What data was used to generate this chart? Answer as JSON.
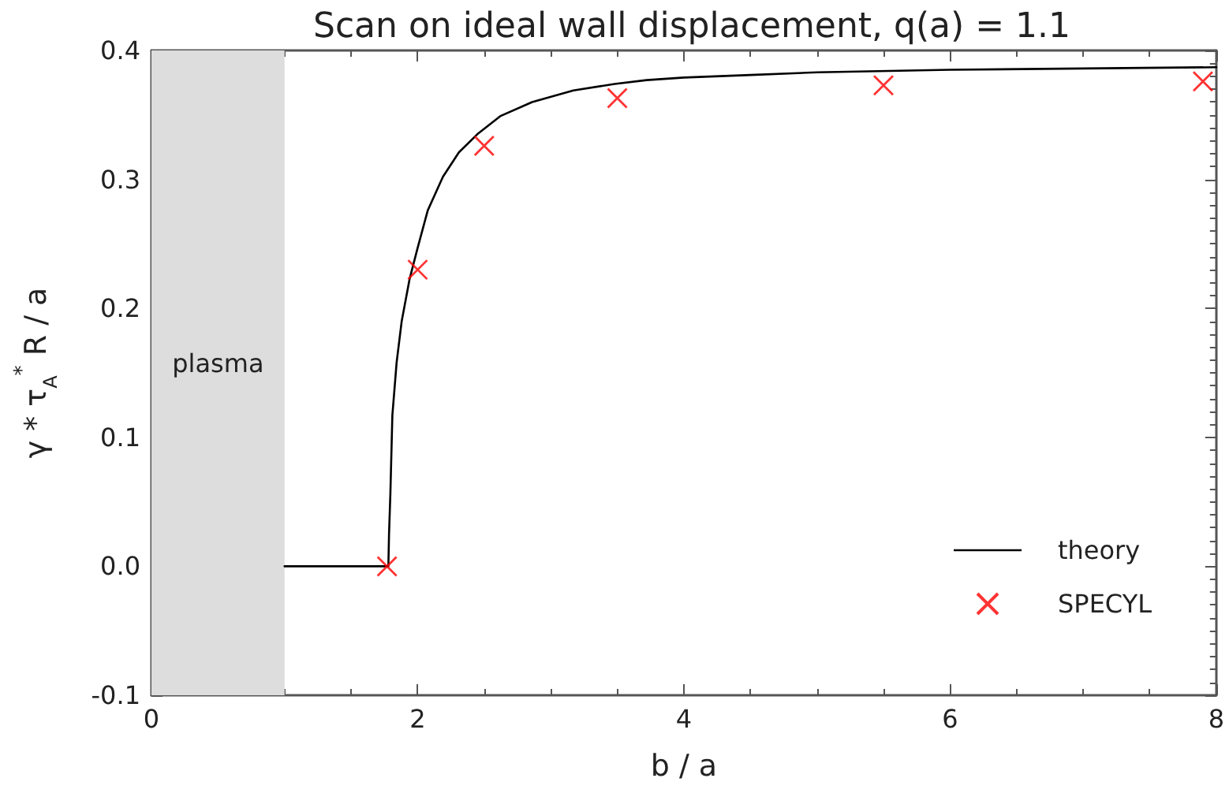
{
  "chart_data": {
    "type": "line",
    "title": "Scan on ideal wall displacement, q(a) = 1.1",
    "xlabel": "b / a",
    "ylabel": "γ * τ$_{A}$$^{*}$ R / a",
    "xlim": [
      0,
      8
    ],
    "ylim": [
      -0.1,
      0.4
    ],
    "xticks": [
      0,
      2,
      4,
      6,
      8
    ],
    "yticks": [
      -0.1,
      {
        "value": 0,
        "label": "0.0"
      },
      0.1,
      0.2,
      0.3,
      0.4
    ],
    "grid": false,
    "legend": "bottom right",
    "bands": [
      {
        "axis": "x",
        "from": 0,
        "to": 1,
        "label": "plasma",
        "color": "#dddddd"
      }
    ],
    "series": [
      {
        "name": "theory",
        "color": "#000000",
        "marker": "none",
        "line_style": "solid",
        "x": [
          1,
          1.78,
          1.785,
          1.795,
          1.81,
          1.842,
          1.88,
          1.94,
          2,
          2.076,
          2.19,
          2.31,
          2.448,
          2.62,
          2.86,
          3.17,
          3.48,
          3.72,
          4,
          4.5,
          5,
          6,
          7,
          8
        ],
        "values": [
          0,
          0,
          0.025,
          0.056,
          0.117,
          0.158,
          0.19,
          0.223,
          0.247,
          0.276,
          0.302,
          0.321,
          0.335,
          0.349,
          0.36,
          0.369,
          0.374,
          0.377,
          0.379,
          0.381,
          0.383,
          0.385,
          0.386,
          0.387
        ]
      },
      {
        "name": "SPECYL",
        "type": "scatter",
        "color": "#ff0000",
        "marker": "cross",
        "x": [
          1.77,
          2,
          2.5,
          3.5,
          5.5,
          7.9
        ],
        "values": [
          0,
          0.23,
          0.326,
          0.363,
          0.373,
          0.376
        ]
      }
    ]
  }
}
